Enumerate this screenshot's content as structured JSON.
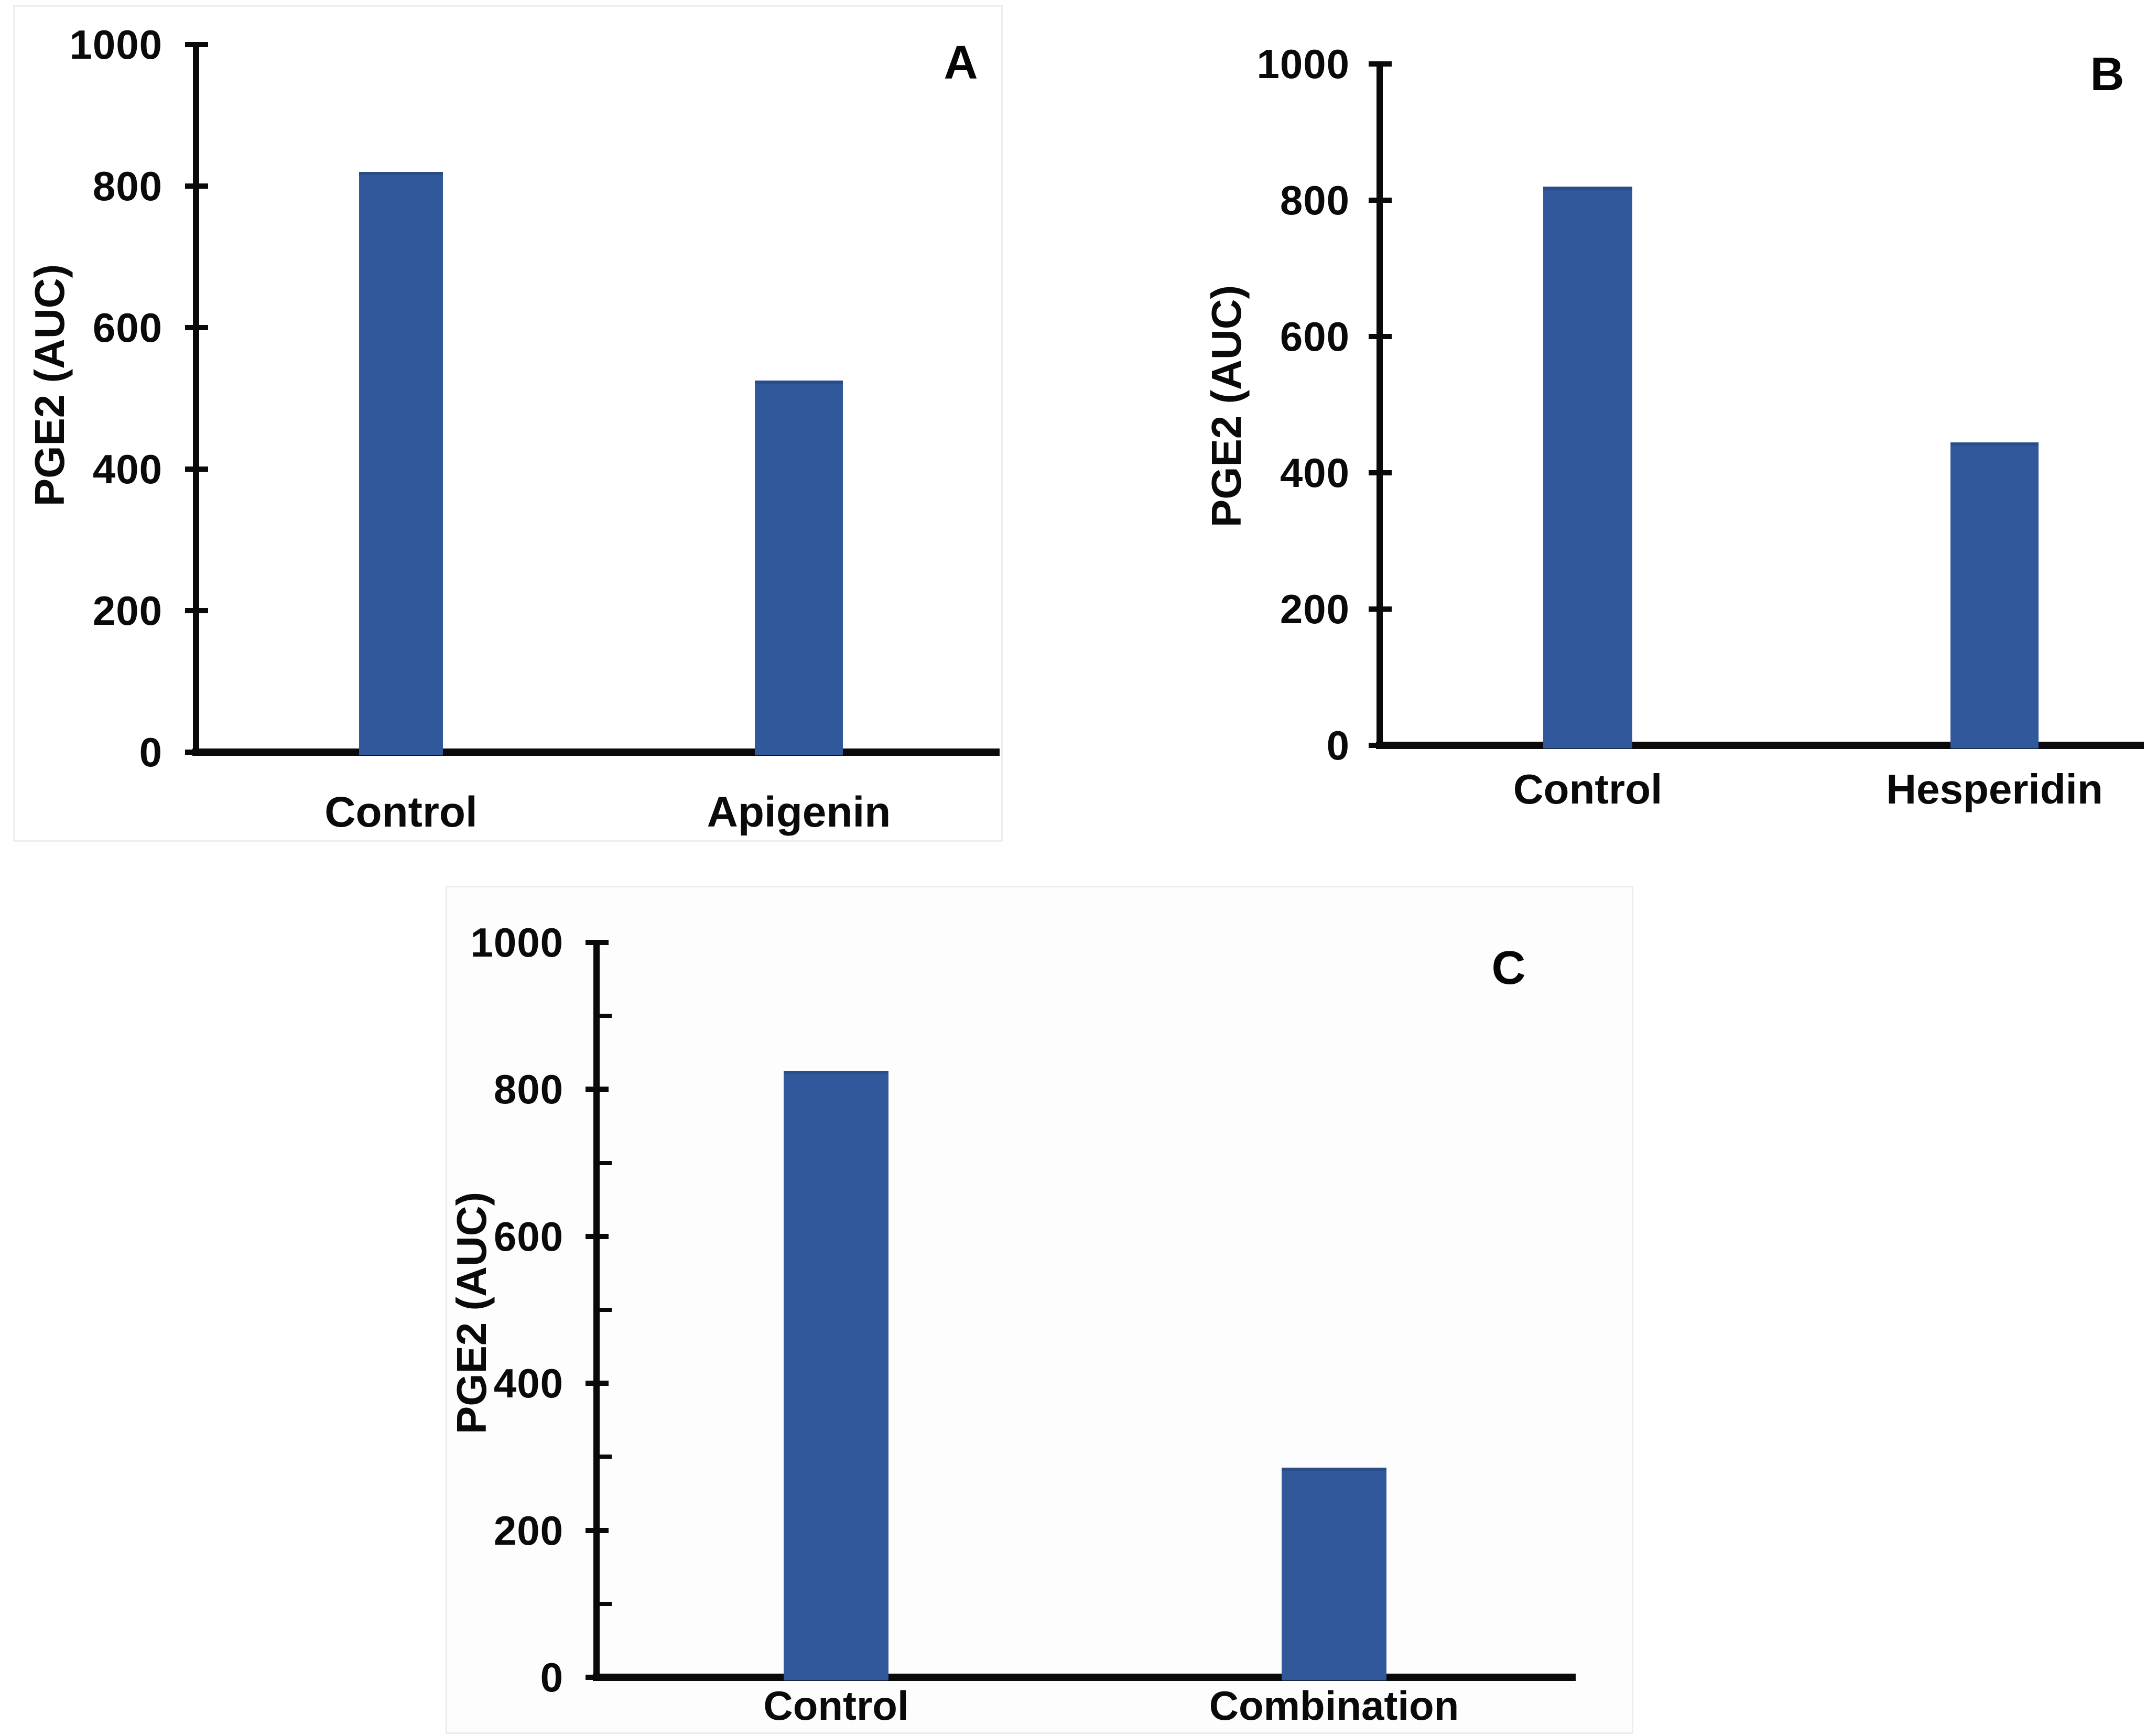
{
  "style": {
    "bar_color": "#30589B",
    "bar_top_color": "#2A4D89",
    "axis_color": "#0a0a0a",
    "text_color": "#0a0a0a",
    "frame_color": "#efefef"
  },
  "chart_data": [
    {
      "type": "bar",
      "panel_label": "A",
      "categories": [
        "Control",
        "Apigenin"
      ],
      "values": [
        820,
        525
      ],
      "ylabel": "PGE2 (AUC)",
      "ylim": [
        0,
        1000
      ],
      "yticks": [
        0,
        200,
        400,
        600,
        800,
        1000
      ],
      "minor_tick_interval": null,
      "grid": false,
      "legend": false
    },
    {
      "type": "bar",
      "panel_label": "B",
      "categories": [
        "Control",
        "Hesperidin"
      ],
      "values": [
        820,
        445
      ],
      "ylabel": "PGE2 (AUC)",
      "ylim": [
        0,
        1000
      ],
      "yticks": [
        0,
        200,
        400,
        600,
        800,
        1000
      ],
      "minor_tick_interval": null,
      "grid": false,
      "legend": false
    },
    {
      "type": "bar",
      "panel_label": "C",
      "categories": [
        "Control",
        "Combination"
      ],
      "values": [
        825,
        285
      ],
      "ylabel": "PGE2 (AUC)",
      "ylim": [
        0,
        1000
      ],
      "yticks": [
        0,
        200,
        400,
        600,
        800,
        1000
      ],
      "minor_tick_interval": 100,
      "grid": false,
      "legend": false
    }
  ]
}
